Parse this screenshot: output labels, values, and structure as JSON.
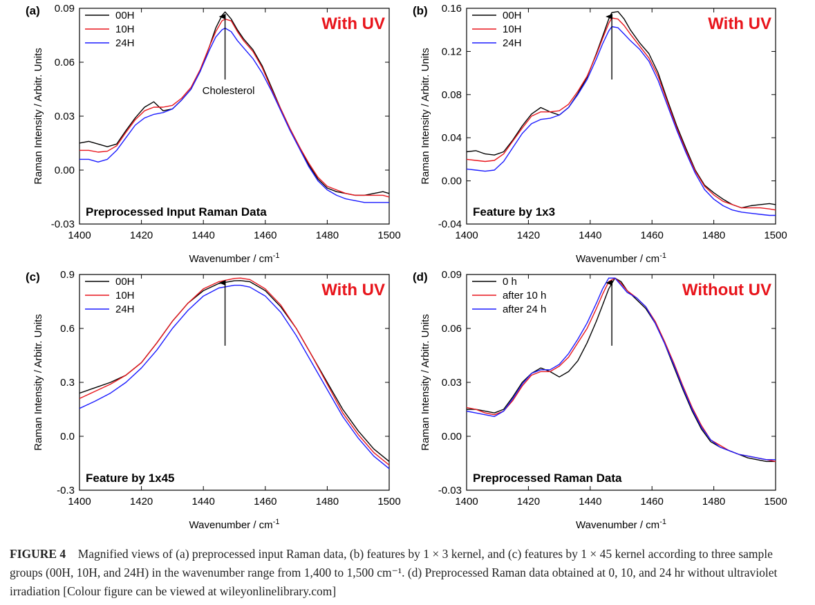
{
  "figure": {
    "caption_label": "FIGURE 4",
    "caption_text": "Magnified views of (a) preprocessed input Raman data, (b) features by 1 × 3 kernel, and (c) features by 1 × 45 kernel according to three sample groups (00H, 10H, and 24H) in the wavenumber range from 1,400 to 1,500 cm⁻¹. (d) Preprocessed Raman data obtained at 0, 10, and 24 hr without ultraviolet irradiation [Colour figure can be viewed at wileyonlinelibrary.com]"
  },
  "chart_data": [
    {
      "panel_label": "(a)",
      "type": "line",
      "condition": "With UV",
      "condition_color": "#e8141b",
      "inner_label": "Preprocessed Input Raman Data",
      "annotation": "Cholesterol",
      "arrow_x": 1447,
      "xlabel": "Wavenumber / cm",
      "xlabel_sup": "-1",
      "ylabel": "Raman Intensity / Arbitr. Units",
      "xlim": [
        1400,
        1500
      ],
      "ylim": [
        -0.03,
        0.09
      ],
      "xticks": [
        1400,
        1420,
        1440,
        1460,
        1480,
        1500
      ],
      "yticks": [
        "-0.03",
        "0.00",
        "0.03",
        "0.06",
        "0.09"
      ],
      "legend_position": "top-left",
      "series": [
        {
          "name": "00H",
          "color": "#000000",
          "x": [
            1400,
            1403,
            1406,
            1409,
            1412,
            1415,
            1418,
            1421,
            1424,
            1427,
            1430,
            1433,
            1436,
            1439,
            1442,
            1444,
            1446,
            1447,
            1449,
            1451,
            1453,
            1456,
            1459,
            1462,
            1465,
            1468,
            1471,
            1474,
            1477,
            1480,
            1483,
            1486,
            1489,
            1492,
            1495,
            1498,
            1500
          ],
          "y": [
            0.015,
            0.016,
            0.0145,
            0.013,
            0.0145,
            0.022,
            0.029,
            0.035,
            0.038,
            0.033,
            0.034,
            0.039,
            0.045,
            0.055,
            0.069,
            0.079,
            0.086,
            0.088,
            0.084,
            0.078,
            0.073,
            0.067,
            0.058,
            0.046,
            0.034,
            0.023,
            0.013,
            0.003,
            -0.005,
            -0.01,
            -0.012,
            -0.013,
            -0.014,
            -0.014,
            -0.013,
            -0.012,
            -0.013
          ]
        },
        {
          "name": "10H",
          "color": "#e8141b",
          "x": [
            1400,
            1403,
            1406,
            1409,
            1412,
            1415,
            1418,
            1421,
            1424,
            1427,
            1430,
            1433,
            1436,
            1439,
            1442,
            1444,
            1446,
            1447,
            1449,
            1451,
            1453,
            1456,
            1459,
            1462,
            1465,
            1468,
            1471,
            1474,
            1477,
            1480,
            1483,
            1486,
            1489,
            1492,
            1495,
            1498,
            1500
          ],
          "y": [
            0.011,
            0.011,
            0.01,
            0.0105,
            0.0135,
            0.021,
            0.028,
            0.033,
            0.035,
            0.035,
            0.036,
            0.04,
            0.046,
            0.056,
            0.069,
            0.077,
            0.083,
            0.084,
            0.083,
            0.077,
            0.072,
            0.066,
            0.057,
            0.045,
            0.034,
            0.023,
            0.013,
            0.004,
            -0.004,
            -0.009,
            -0.011,
            -0.013,
            -0.014,
            -0.014,
            -0.014,
            -0.014,
            -0.015
          ]
        },
        {
          "name": "24H",
          "color": "#1a1aff",
          "x": [
            1400,
            1403,
            1406,
            1409,
            1412,
            1415,
            1418,
            1421,
            1424,
            1427,
            1430,
            1433,
            1436,
            1439,
            1442,
            1444,
            1446,
            1447,
            1449,
            1451,
            1453,
            1456,
            1459,
            1462,
            1465,
            1468,
            1471,
            1474,
            1477,
            1480,
            1483,
            1486,
            1489,
            1492,
            1495,
            1498,
            1500
          ],
          "y": [
            0.006,
            0.006,
            0.0045,
            0.006,
            0.011,
            0.018,
            0.025,
            0.029,
            0.031,
            0.032,
            0.034,
            0.039,
            0.045,
            0.055,
            0.067,
            0.074,
            0.078,
            0.079,
            0.077,
            0.072,
            0.068,
            0.062,
            0.054,
            0.044,
            0.033,
            0.022,
            0.012,
            0.002,
            -0.006,
            -0.011,
            -0.014,
            -0.016,
            -0.017,
            -0.018,
            -0.018,
            -0.018,
            -0.018
          ]
        }
      ]
    },
    {
      "panel_label": "(b)",
      "type": "line",
      "condition": "With UV",
      "condition_color": "#e8141b",
      "inner_label": "Feature by 1x3",
      "annotation": "",
      "arrow_x": 1447,
      "xlabel": "Wavenumber / cm",
      "xlabel_sup": "-1",
      "ylabel": "Raman Intensity / Arbitr. Units",
      "xlim": [
        1400,
        1500
      ],
      "ylim": [
        -0.04,
        0.16
      ],
      "xticks": [
        1400,
        1420,
        1440,
        1460,
        1480,
        1500
      ],
      "yticks": [
        "-0.04",
        "0.00",
        "0.04",
        "0.08",
        "0.12",
        "0.16"
      ],
      "legend_position": "top-left",
      "series": [
        {
          "name": "00H",
          "color": "#000000",
          "x": [
            1400,
            1403,
            1406,
            1409,
            1412,
            1415,
            1418,
            1421,
            1424,
            1427,
            1430,
            1433,
            1436,
            1439,
            1442,
            1444,
            1446,
            1447,
            1449,
            1451,
            1453,
            1456,
            1459,
            1462,
            1465,
            1468,
            1471,
            1474,
            1477,
            1480,
            1483,
            1486,
            1489,
            1492,
            1495,
            1498,
            1500
          ],
          "y": [
            0.027,
            0.028,
            0.025,
            0.024,
            0.027,
            0.038,
            0.051,
            0.062,
            0.068,
            0.064,
            0.061,
            0.068,
            0.081,
            0.096,
            0.118,
            0.134,
            0.15,
            0.156,
            0.157,
            0.15,
            0.14,
            0.128,
            0.118,
            0.1,
            0.075,
            0.051,
            0.03,
            0.01,
            -0.004,
            -0.011,
            -0.017,
            -0.022,
            -0.025,
            -0.023,
            -0.022,
            -0.021,
            -0.022
          ]
        },
        {
          "name": "10H",
          "color": "#e8141b",
          "x": [
            1400,
            1403,
            1406,
            1409,
            1412,
            1415,
            1418,
            1421,
            1424,
            1427,
            1430,
            1433,
            1436,
            1439,
            1442,
            1444,
            1446,
            1447,
            1449,
            1451,
            1453,
            1456,
            1459,
            1462,
            1465,
            1468,
            1471,
            1474,
            1477,
            1480,
            1483,
            1486,
            1489,
            1492,
            1495,
            1498,
            1500
          ],
          "y": [
            0.02,
            0.019,
            0.018,
            0.019,
            0.025,
            0.037,
            0.049,
            0.06,
            0.064,
            0.064,
            0.065,
            0.071,
            0.083,
            0.097,
            0.117,
            0.132,
            0.146,
            0.151,
            0.15,
            0.144,
            0.136,
            0.125,
            0.114,
            0.097,
            0.073,
            0.049,
            0.028,
            0.009,
            -0.005,
            -0.013,
            -0.019,
            -0.022,
            -0.025,
            -0.025,
            -0.025,
            -0.026,
            -0.027
          ]
        },
        {
          "name": "24H",
          "color": "#1a1aff",
          "x": [
            1400,
            1403,
            1406,
            1409,
            1412,
            1415,
            1418,
            1421,
            1424,
            1427,
            1430,
            1433,
            1436,
            1439,
            1442,
            1444,
            1446,
            1447,
            1449,
            1451,
            1453,
            1456,
            1459,
            1462,
            1465,
            1468,
            1471,
            1474,
            1477,
            1480,
            1483,
            1486,
            1489,
            1492,
            1495,
            1498,
            1500
          ],
          "y": [
            0.011,
            0.01,
            0.009,
            0.01,
            0.018,
            0.031,
            0.044,
            0.053,
            0.057,
            0.058,
            0.061,
            0.068,
            0.08,
            0.094,
            0.113,
            0.127,
            0.139,
            0.143,
            0.142,
            0.136,
            0.13,
            0.122,
            0.111,
            0.093,
            0.07,
            0.047,
            0.026,
            0.007,
            -0.008,
            -0.017,
            -0.023,
            -0.027,
            -0.029,
            -0.03,
            -0.031,
            -0.032,
            -0.032
          ]
        }
      ]
    },
    {
      "panel_label": "(c)",
      "type": "line",
      "condition": "With UV",
      "condition_color": "#e8141b",
      "inner_label": "Feature by 1x45",
      "annotation": "",
      "arrow_x": 1447,
      "xlabel": "Wavenumber / cm",
      "xlabel_sup": "-1",
      "ylabel": "Raman Intensity / Arbitr. Units",
      "xlim": [
        1400,
        1500
      ],
      "ylim": [
        -0.3,
        0.9
      ],
      "xticks": [
        1400,
        1420,
        1440,
        1460,
        1480,
        1500
      ],
      "yticks": [
        "-0.3",
        "0.0",
        "0.3",
        "0.6",
        "0.9"
      ],
      "legend_position": "top-left",
      "series": [
        {
          "name": "00H",
          "color": "#000000",
          "x": [
            1400,
            1405,
            1410,
            1415,
            1420,
            1425,
            1430,
            1435,
            1440,
            1445,
            1450,
            1452,
            1455,
            1460,
            1465,
            1470,
            1475,
            1480,
            1485,
            1490,
            1495,
            1500
          ],
          "y": [
            0.24,
            0.27,
            0.3,
            0.34,
            0.41,
            0.52,
            0.64,
            0.74,
            0.81,
            0.85,
            0.865,
            0.866,
            0.86,
            0.81,
            0.72,
            0.6,
            0.45,
            0.3,
            0.15,
            0.03,
            -0.07,
            -0.14
          ]
        },
        {
          "name": "10H",
          "color": "#e8141b",
          "x": [
            1400,
            1405,
            1410,
            1415,
            1420,
            1425,
            1430,
            1435,
            1440,
            1445,
            1450,
            1452,
            1455,
            1460,
            1465,
            1470,
            1475,
            1480,
            1485,
            1490,
            1495,
            1500
          ],
          "y": [
            0.21,
            0.25,
            0.29,
            0.34,
            0.41,
            0.52,
            0.64,
            0.74,
            0.82,
            0.86,
            0.878,
            0.88,
            0.872,
            0.82,
            0.73,
            0.6,
            0.45,
            0.29,
            0.13,
            0.01,
            -0.09,
            -0.16
          ]
        },
        {
          "name": "24H",
          "color": "#1a1aff",
          "x": [
            1400,
            1405,
            1410,
            1415,
            1420,
            1425,
            1430,
            1435,
            1440,
            1445,
            1450,
            1452,
            1455,
            1460,
            1465,
            1470,
            1475,
            1480,
            1485,
            1490,
            1495,
            1500
          ],
          "y": [
            0.155,
            0.195,
            0.24,
            0.3,
            0.38,
            0.48,
            0.6,
            0.7,
            0.78,
            0.825,
            0.84,
            0.84,
            0.83,
            0.78,
            0.69,
            0.56,
            0.41,
            0.26,
            0.11,
            -0.01,
            -0.11,
            -0.18
          ]
        }
      ]
    },
    {
      "panel_label": "(d)",
      "type": "line",
      "condition": "Without UV",
      "condition_color": "#e8141b",
      "inner_label": "Preprocessed Raman Data",
      "annotation": "",
      "arrow_x": 1447,
      "xlabel": "Wavenumber / cm",
      "xlabel_sup": "-1",
      "ylabel": "Raman Intensity / Arbitr. Units",
      "xlim": [
        1400,
        1500
      ],
      "ylim": [
        -0.03,
        0.09
      ],
      "xticks": [
        1400,
        1420,
        1440,
        1460,
        1480,
        1500
      ],
      "yticks": [
        "-0.03",
        "0.00",
        "0.03",
        "0.06",
        "0.09"
      ],
      "legend_position": "top-left",
      "series": [
        {
          "name": "0 h",
          "color": "#000000",
          "x": [
            1400,
            1403,
            1406,
            1409,
            1412,
            1415,
            1418,
            1421,
            1424,
            1427,
            1430,
            1433,
            1436,
            1439,
            1442,
            1444,
            1446,
            1448,
            1450,
            1452,
            1455,
            1458,
            1461,
            1464,
            1467,
            1470,
            1473,
            1476,
            1479,
            1482,
            1485,
            1488,
            1491,
            1494,
            1497,
            1500
          ],
          "y": [
            0.015,
            0.015,
            0.014,
            0.013,
            0.015,
            0.022,
            0.03,
            0.035,
            0.038,
            0.036,
            0.033,
            0.036,
            0.042,
            0.052,
            0.064,
            0.073,
            0.082,
            0.088,
            0.086,
            0.081,
            0.076,
            0.071,
            0.063,
            0.052,
            0.039,
            0.026,
            0.014,
            0.004,
            -0.003,
            -0.006,
            -0.008,
            -0.01,
            -0.012,
            -0.013,
            -0.014,
            -0.014
          ]
        },
        {
          "name": "after 10 h",
          "color": "#e8141b",
          "x": [
            1400,
            1403,
            1406,
            1409,
            1412,
            1415,
            1418,
            1421,
            1424,
            1427,
            1430,
            1433,
            1436,
            1439,
            1442,
            1444,
            1446,
            1448,
            1450,
            1452,
            1455,
            1458,
            1461,
            1464,
            1467,
            1470,
            1473,
            1476,
            1479,
            1482,
            1485,
            1488,
            1491,
            1494,
            1497,
            1500
          ],
          "y": [
            0.016,
            0.015,
            0.013,
            0.012,
            0.014,
            0.02,
            0.028,
            0.034,
            0.036,
            0.036,
            0.039,
            0.044,
            0.052,
            0.06,
            0.071,
            0.079,
            0.086,
            0.088,
            0.085,
            0.081,
            0.077,
            0.072,
            0.064,
            0.053,
            0.041,
            0.028,
            0.016,
            0.006,
            -0.002,
            -0.005,
            -0.008,
            -0.01,
            -0.011,
            -0.012,
            -0.013,
            -0.014
          ]
        },
        {
          "name": "after 24 h",
          "color": "#1a1aff",
          "x": [
            1400,
            1403,
            1406,
            1409,
            1412,
            1415,
            1418,
            1421,
            1424,
            1427,
            1430,
            1433,
            1436,
            1439,
            1442,
            1444,
            1446,
            1448,
            1450,
            1452,
            1455,
            1458,
            1461,
            1464,
            1467,
            1470,
            1473,
            1476,
            1479,
            1482,
            1485,
            1488,
            1491,
            1494,
            1497,
            1500
          ],
          "y": [
            0.014,
            0.013,
            0.012,
            0.011,
            0.014,
            0.021,
            0.029,
            0.035,
            0.037,
            0.037,
            0.04,
            0.046,
            0.054,
            0.063,
            0.074,
            0.082,
            0.088,
            0.088,
            0.084,
            0.08,
            0.077,
            0.072,
            0.063,
            0.052,
            0.04,
            0.027,
            0.015,
            0.005,
            -0.002,
            -0.006,
            -0.008,
            -0.01,
            -0.011,
            -0.012,
            -0.013,
            -0.013
          ]
        }
      ]
    }
  ]
}
